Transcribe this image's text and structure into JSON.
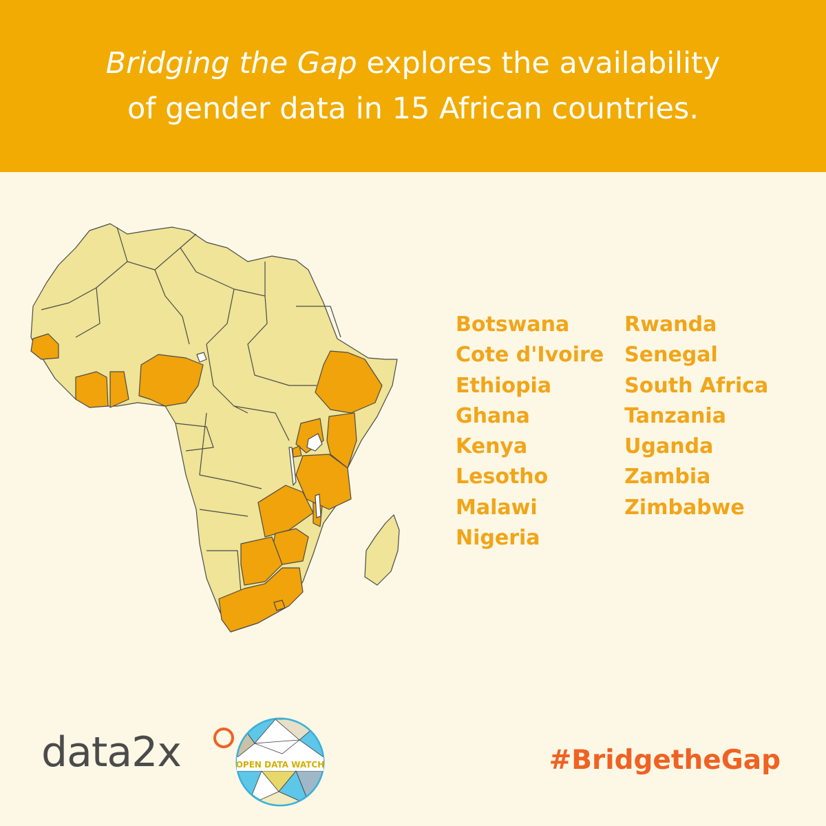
{
  "banner": {
    "title_italic": "Bridging the Gap",
    "title_rest": " explores the availability",
    "title_line2": "of gender data in 15 African countries."
  },
  "countries": {
    "column1": [
      "Botswana",
      "Cote d'Ivoire",
      "Ethiopia",
      "Ghana",
      "Kenya",
      "Lesotho",
      "Malawi",
      "Nigeria"
    ],
    "column2": [
      "Rwanda",
      "Senegal",
      "South Africa",
      "Tanzania",
      "Uganda",
      "Zambia",
      "Zimbabwe"
    ]
  },
  "map": {
    "highlight_color": "#f0a30a",
    "base_color": "#efe497",
    "border_color": "#4a4a4a"
  },
  "logos": {
    "data2x": "data2x",
    "odw_text": "OPEN DATA WATCH"
  },
  "hashtag": "#BridgetheGap",
  "colors": {
    "banner": "#f1ab02",
    "background": "#fdf8e6",
    "country_text": "#f1a51a",
    "hashtag": "#ef6224"
  }
}
